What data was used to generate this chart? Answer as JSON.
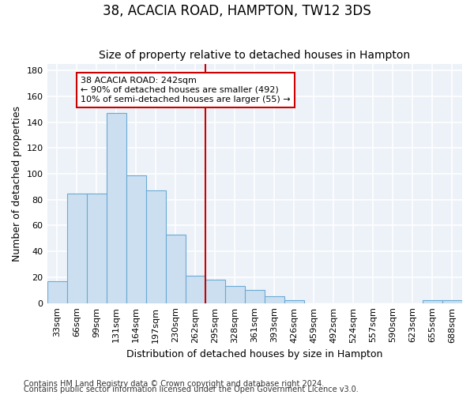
{
  "title": "38, ACACIA ROAD, HAMPTON, TW12 3DS",
  "subtitle": "Size of property relative to detached houses in Hampton",
  "xlabel": "Distribution of detached houses by size in Hampton",
  "ylabel": "Number of detached properties",
  "footnote1": "Contains HM Land Registry data © Crown copyright and database right 2024.",
  "footnote2": "Contains public sector information licensed under the Open Government Licence v3.0.",
  "bin_labels": [
    "33sqm",
    "66sqm",
    "99sqm",
    "131sqm",
    "164sqm",
    "197sqm",
    "230sqm",
    "262sqm",
    "295sqm",
    "328sqm",
    "361sqm",
    "393sqm",
    "426sqm",
    "459sqm",
    "492sqm",
    "524sqm",
    "557sqm",
    "590sqm",
    "623sqm",
    "655sqm",
    "688sqm"
  ],
  "bar_values": [
    17,
    85,
    85,
    147,
    99,
    87,
    53,
    21,
    18,
    13,
    10,
    5,
    2,
    0,
    0,
    0,
    0,
    0,
    0,
    2,
    2
  ],
  "bar_color": "#ccdff0",
  "bar_edge_color": "#6aaad4",
  "red_line_x": 7.5,
  "annotation_text": "38 ACACIA ROAD: 242sqm\n← 90% of detached houses are smaller (492)\n10% of semi-detached houses are larger (55) →",
  "annotation_box_color": "#ffffff",
  "annotation_box_edge_color": "#cc0000",
  "red_line_color": "#cc0000",
  "ylim": [
    0,
    185
  ],
  "yticks": [
    0,
    20,
    40,
    60,
    80,
    100,
    120,
    140,
    160,
    180
  ],
  "background_color": "#edf2f9",
  "grid_color": "#ffffff",
  "fig_background": "#ffffff",
  "title_fontsize": 12,
  "subtitle_fontsize": 10,
  "axis_label_fontsize": 9,
  "tick_fontsize": 8,
  "footnote_fontsize": 7
}
